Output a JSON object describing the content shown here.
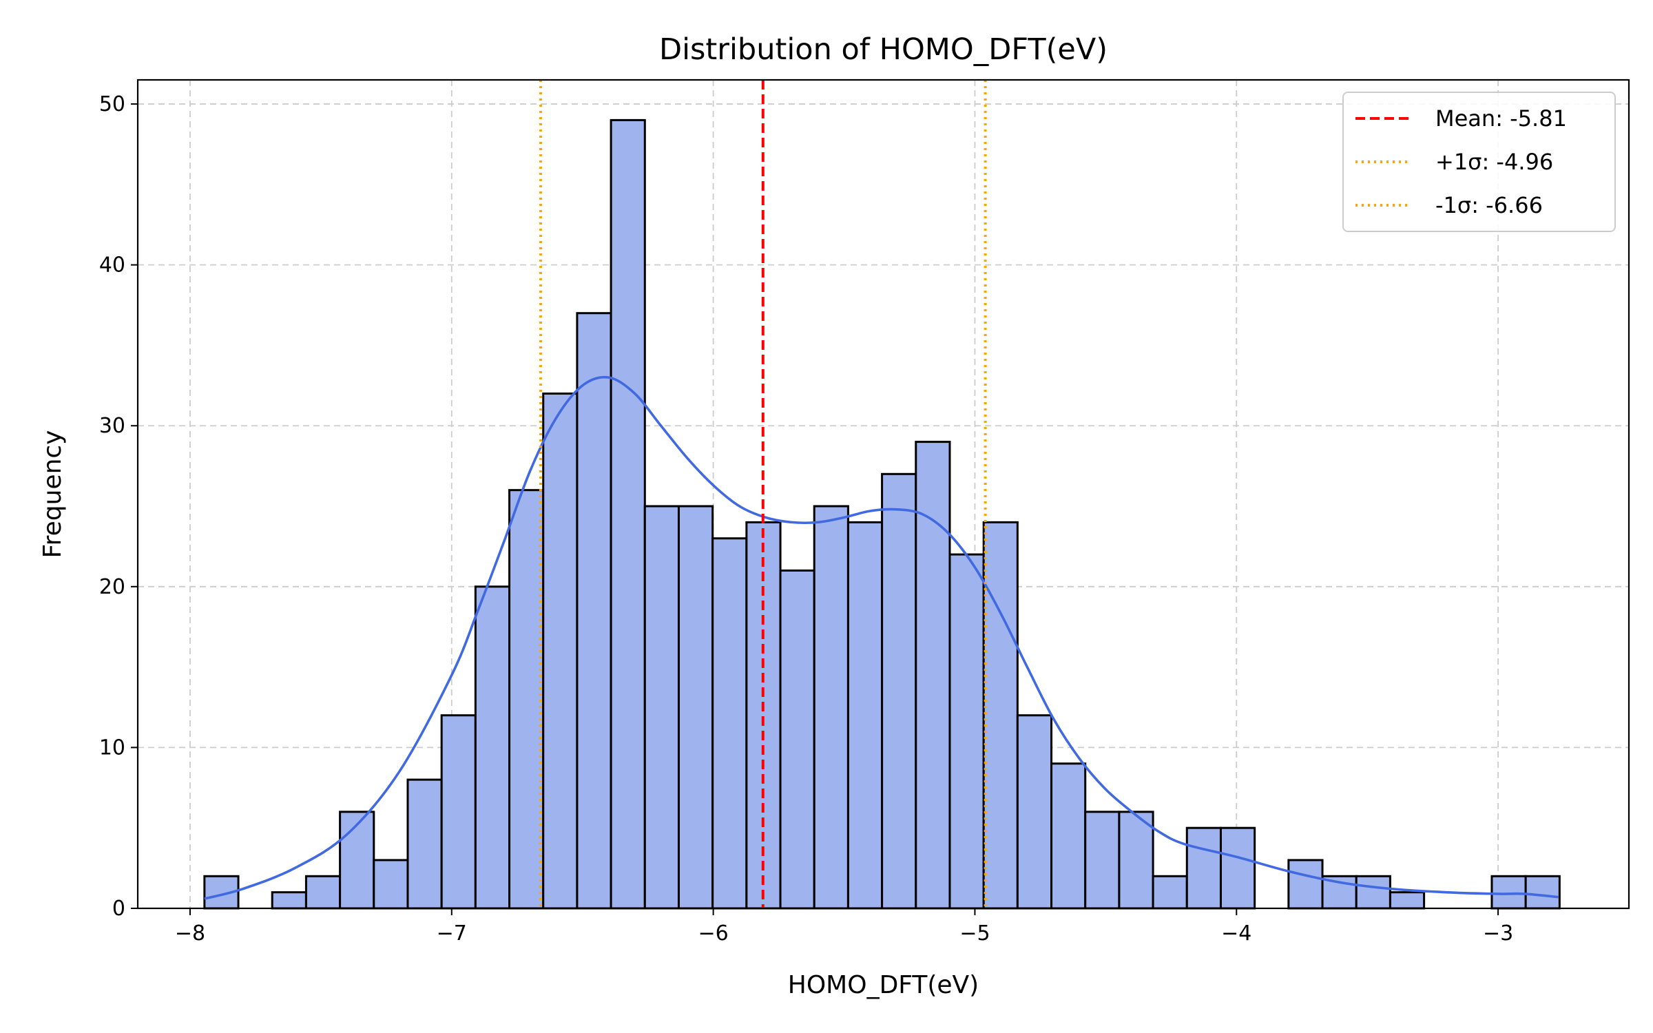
{
  "chart_data": {
    "type": "bar",
    "title": "Distribution of HOMO_DFT(eV)",
    "xlabel": "HOMO_DFT(eV)",
    "ylabel": "Frequency",
    "xlim": [
      -8.2,
      -2.5
    ],
    "ylim": [
      0,
      51.5
    ],
    "xticks": [
      -8,
      -7,
      -6,
      -5,
      -4,
      -3
    ],
    "xtick_labels": [
      "−8",
      "−7",
      "−6",
      "−5",
      "−4",
      "−3"
    ],
    "yticks": [
      0,
      10,
      20,
      30,
      40,
      50
    ],
    "ytick_labels": [
      "0",
      "10",
      "20",
      "30",
      "40",
      "50"
    ],
    "grid": true,
    "bin_start": -7.945,
    "bin_width": 0.1295,
    "counts": [
      2,
      0,
      1,
      2,
      6,
      3,
      8,
      12,
      20,
      26,
      32,
      37,
      49,
      25,
      25,
      23,
      24,
      21,
      25,
      24,
      27,
      29,
      22,
      24,
      12,
      9,
      6,
      6,
      2,
      5,
      5,
      0,
      3,
      2,
      2,
      1,
      0,
      0,
      2,
      2
    ],
    "kde": {
      "x": [
        -7.945,
        -7.8,
        -7.6,
        -7.4,
        -7.2,
        -7.0,
        -6.9,
        -6.8,
        -6.7,
        -6.6,
        -6.5,
        -6.4,
        -6.3,
        -6.2,
        -6.1,
        -6.0,
        -5.9,
        -5.8,
        -5.7,
        -5.6,
        -5.5,
        -5.4,
        -5.3,
        -5.2,
        -5.1,
        -5.0,
        -4.9,
        -4.8,
        -4.7,
        -4.6,
        -4.5,
        -4.4,
        -4.3,
        -4.2,
        -4.0,
        -3.8,
        -3.6,
        -3.4,
        -3.2,
        -3.0,
        -2.9,
        -2.77
      ],
      "y": [
        0.6,
        1.2,
        2.5,
        4.6,
        8.5,
        14.5,
        18.5,
        22.8,
        27.2,
        30.5,
        32.5,
        33.0,
        32.0,
        30.0,
        28.0,
        26.3,
        25.0,
        24.3,
        24.0,
        24.0,
        24.3,
        24.7,
        24.8,
        24.5,
        23.3,
        21.2,
        18.3,
        15.0,
        11.8,
        9.3,
        7.4,
        6.0,
        4.8,
        4.0,
        3.2,
        2.3,
        1.6,
        1.2,
        1.0,
        0.9,
        0.9,
        0.7
      ]
    },
    "reference_lines": [
      {
        "label": "Mean: -5.81",
        "value": -5.81,
        "color": "#ff0000",
        "style": "dashed"
      },
      {
        "label": "+1σ: -4.96",
        "value": -4.96,
        "color": "#ffa500",
        "style": "dotted"
      },
      {
        "label": "-1σ: -6.66",
        "value": -6.66,
        "color": "#ffa500",
        "style": "dotted"
      }
    ],
    "legend_position": "top-right",
    "colors": {
      "bar_fill": "#9fb3ee",
      "bar_edge": "#000000",
      "kde_line": "#4169e1",
      "grid": "#cccccc"
    }
  }
}
